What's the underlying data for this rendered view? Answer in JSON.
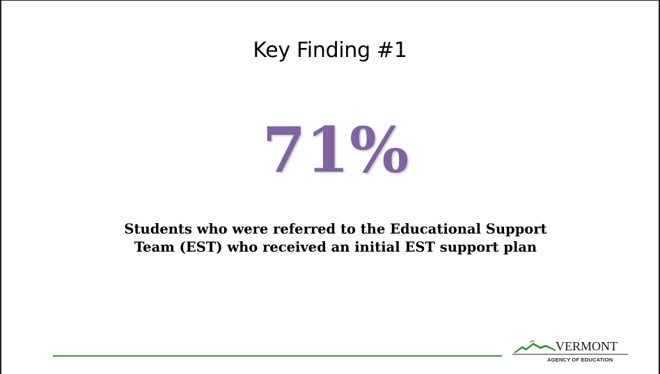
{
  "slide": {
    "title": "Key Finding #1",
    "stat": "71%",
    "description_lines": [
      "Students who were referred to the Educational Support",
      "Team (EST) who received an initial EST support plan"
    ]
  },
  "logo": {
    "wordmark": "VERMONT",
    "subtitle": "AGENCY OF EDUCATION",
    "icon": "mountain-icon"
  },
  "colors": {
    "stat": "#8064a2",
    "footer_line": "#3f8f3f",
    "logo_green": "#2e8b3a"
  }
}
